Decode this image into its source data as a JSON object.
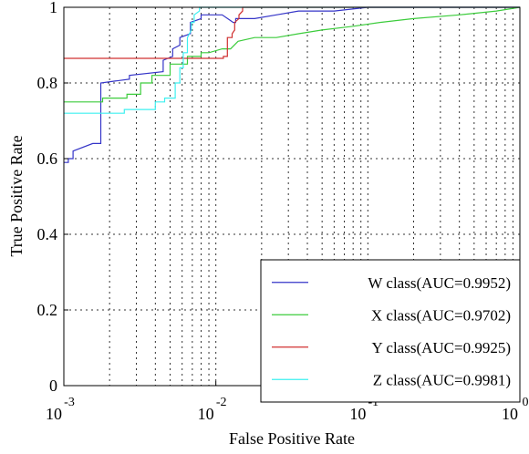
{
  "chart_data": {
    "type": "line",
    "xlabel": "False Positive Rate",
    "ylabel": "True Positive Rate",
    "xscale": "log",
    "xlim": [
      0.001,
      1
    ],
    "ylim": [
      0,
      1.0
    ],
    "grid": true,
    "legend_position": "bottom-right",
    "x_ticks": [
      {
        "base": "10",
        "exp": "-3",
        "value": 0.001
      },
      {
        "base": "10",
        "exp": "-2",
        "value": 0.01
      },
      {
        "base": "10",
        "exp": "-1",
        "value": 0.1
      },
      {
        "base": "10",
        "exp": "0",
        "value": 1
      }
    ],
    "y_ticks": [
      "0",
      "0.2",
      "0.4",
      "0.6",
      "0.8",
      "1"
    ],
    "series": [
      {
        "name": "W class(AUC=0.9952)",
        "color": "#3535c8",
        "points": [
          [
            0.001,
            0.59
          ],
          [
            0.00107,
            0.59
          ],
          [
            0.00107,
            0.6
          ],
          [
            0.00115,
            0.6
          ],
          [
            0.00115,
            0.62
          ],
          [
            0.00155,
            0.64
          ],
          [
            0.00175,
            0.64
          ],
          [
            0.00175,
            0.8
          ],
          [
            0.0027,
            0.81
          ],
          [
            0.0027,
            0.82
          ],
          [
            0.0045,
            0.83
          ],
          [
            0.0045,
            0.86
          ],
          [
            0.0052,
            0.87
          ],
          [
            0.0052,
            0.89
          ],
          [
            0.0058,
            0.9
          ],
          [
            0.0058,
            0.92
          ],
          [
            0.0068,
            0.93
          ],
          [
            0.0068,
            0.96
          ],
          [
            0.008,
            0.97
          ],
          [
            0.008,
            0.98
          ],
          [
            0.0095,
            0.98
          ],
          [
            0.011,
            0.98
          ],
          [
            0.013,
            0.96
          ],
          [
            0.0135,
            0.96
          ],
          [
            0.0135,
            0.97
          ],
          [
            0.018,
            0.97
          ],
          [
            0.025,
            0.98
          ],
          [
            0.035,
            0.99
          ],
          [
            0.06,
            0.99
          ],
          [
            0.1,
            1.0
          ],
          [
            0.3,
            1.0
          ],
          [
            1.0,
            1.0
          ]
        ]
      },
      {
        "name": "X class(AUC=0.9702)",
        "color": "#3ccc3c",
        "points": [
          [
            0.001,
            0.75
          ],
          [
            0.0018,
            0.75
          ],
          [
            0.0018,
            0.76
          ],
          [
            0.0026,
            0.76
          ],
          [
            0.0026,
            0.77
          ],
          [
            0.0032,
            0.77
          ],
          [
            0.0032,
            0.8
          ],
          [
            0.0038,
            0.8
          ],
          [
            0.0038,
            0.82
          ],
          [
            0.005,
            0.82
          ],
          [
            0.005,
            0.85
          ],
          [
            0.0065,
            0.85
          ],
          [
            0.0065,
            0.87
          ],
          [
            0.008,
            0.87
          ],
          [
            0.008,
            0.88
          ],
          [
            0.009,
            0.88
          ],
          [
            0.011,
            0.89
          ],
          [
            0.0125,
            0.89
          ],
          [
            0.014,
            0.91
          ],
          [
            0.018,
            0.92
          ],
          [
            0.025,
            0.92
          ],
          [
            0.035,
            0.93
          ],
          [
            0.05,
            0.94
          ],
          [
            0.08,
            0.95
          ],
          [
            0.12,
            0.96
          ],
          [
            0.2,
            0.97
          ],
          [
            0.4,
            0.98
          ],
          [
            0.7,
            0.99
          ],
          [
            1.0,
            1.0
          ]
        ]
      },
      {
        "name": "Y class(AUC=0.9925)",
        "color": "#d03030",
        "points": [
          [
            0.001,
            0.865
          ],
          [
            0.0112,
            0.865
          ],
          [
            0.0112,
            0.87
          ],
          [
            0.0119,
            0.87
          ],
          [
            0.0119,
            0.92
          ],
          [
            0.0128,
            0.92
          ],
          [
            0.0128,
            0.93
          ],
          [
            0.0133,
            0.94
          ],
          [
            0.0133,
            0.96
          ],
          [
            0.0142,
            0.97
          ],
          [
            0.0142,
            0.98
          ],
          [
            0.015,
            0.99
          ],
          [
            0.015,
            1.0
          ],
          [
            0.3,
            1.0
          ],
          [
            1.0,
            1.0
          ]
        ]
      },
      {
        "name": "Z class(AUC=0.9981)",
        "color": "#3ef0f0",
        "points": [
          [
            0.001,
            0.72
          ],
          [
            0.0025,
            0.72
          ],
          [
            0.0025,
            0.73
          ],
          [
            0.004,
            0.73
          ],
          [
            0.004,
            0.75
          ],
          [
            0.0046,
            0.75
          ],
          [
            0.0046,
            0.76
          ],
          [
            0.0054,
            0.76
          ],
          [
            0.0054,
            0.8
          ],
          [
            0.0058,
            0.8
          ],
          [
            0.0058,
            0.84
          ],
          [
            0.0061,
            0.84
          ],
          [
            0.0061,
            0.88
          ],
          [
            0.0065,
            0.88
          ],
          [
            0.0065,
            0.92
          ],
          [
            0.0069,
            0.94
          ],
          [
            0.0069,
            0.96
          ],
          [
            0.0072,
            0.96
          ],
          [
            0.0072,
            0.98
          ],
          [
            0.0078,
            0.99
          ],
          [
            0.0078,
            1.0
          ],
          [
            0.3,
            1.0
          ],
          [
            1.0,
            1.0
          ]
        ]
      }
    ]
  }
}
